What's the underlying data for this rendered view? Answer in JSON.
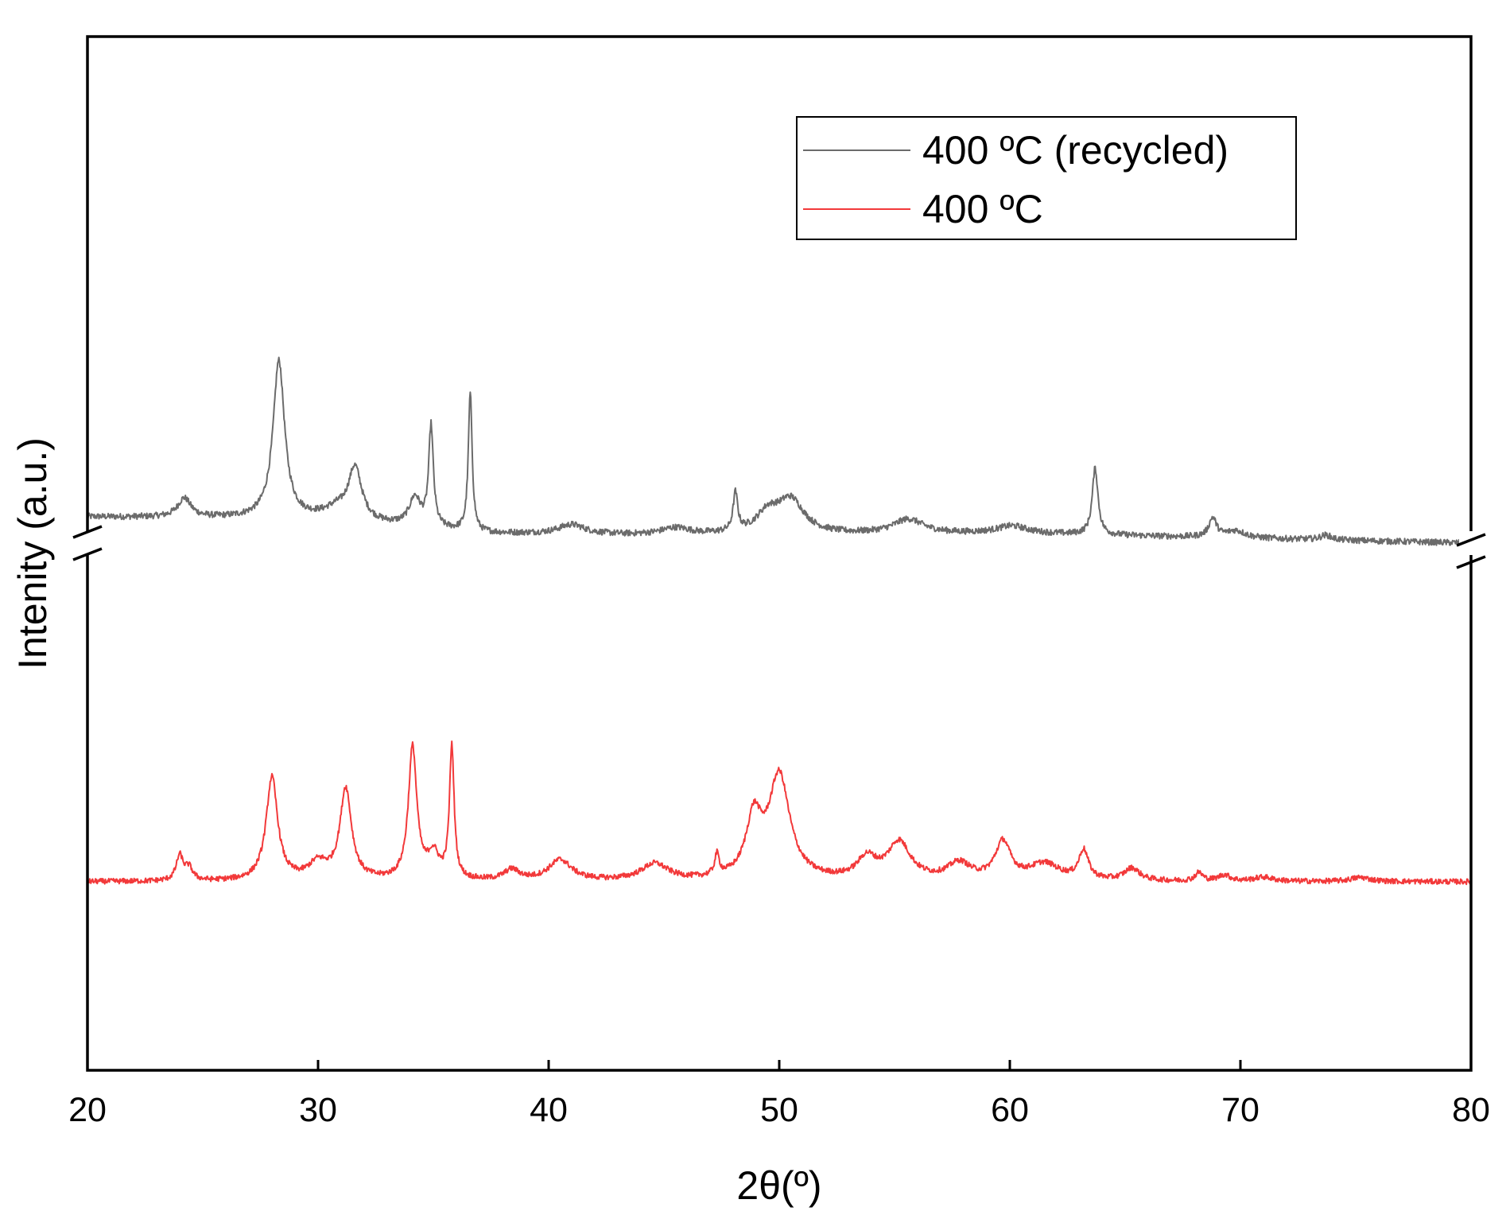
{
  "chart_data": {
    "type": "line",
    "xlabel": "2θ(º)",
    "ylabel": "Intenity (a.u.)",
    "xlim": [
      20,
      80
    ],
    "xticks": [
      "20",
      "30",
      "40",
      "50",
      "60",
      "70",
      "80"
    ],
    "axis_break": true,
    "legend_position": "top-right",
    "grid": false,
    "series": [
      {
        "name": "400 ºC (recycled)",
        "color": "#6b6b6b",
        "baseline": [
          [
            20,
            4
          ],
          [
            30,
            3.5
          ],
          [
            37,
            0.5
          ],
          [
            45,
            0
          ],
          [
            60,
            0.5
          ],
          [
            80,
            -1.5
          ]
        ],
        "peaks": [
          [
            24.2,
            4,
            0.35
          ],
          [
            28.3,
            33,
            0.3
          ],
          [
            30.8,
            2,
            0.6
          ],
          [
            31.6,
            11,
            0.35
          ],
          [
            34.2,
            6,
            0.3
          ],
          [
            34.9,
            21,
            0.12
          ],
          [
            36.6,
            29,
            0.1
          ],
          [
            41,
            2,
            0.7
          ],
          [
            45.5,
            1.5,
            0.8
          ],
          [
            48.1,
            8,
            0.12
          ],
          [
            49.5,
            4,
            0.6
          ],
          [
            50.5,
            7,
            0.7
          ],
          [
            55.6,
            3,
            0.8
          ],
          [
            60.1,
            1.5,
            0.8
          ],
          [
            63.7,
            14,
            0.15
          ],
          [
            68.8,
            4,
            0.2
          ],
          [
            69.8,
            1.5,
            0.5
          ],
          [
            73.7,
            1,
            0.3
          ]
        ]
      },
      {
        "name": "400 ºC",
        "color": "#f2393a",
        "baseline": [
          [
            20,
            0
          ],
          [
            80,
            0
          ]
        ],
        "peaks": [
          [
            24.0,
            6,
            0.18
          ],
          [
            24.4,
            3,
            0.2
          ],
          [
            28.0,
            25,
            0.3
          ],
          [
            30.0,
            4,
            0.5
          ],
          [
            31.2,
            22,
            0.3
          ],
          [
            34.1,
            32,
            0.22
          ],
          [
            35.0,
            6,
            0.3
          ],
          [
            35.8,
            32,
            0.12
          ],
          [
            38.4,
            2.5,
            0.4
          ],
          [
            40.5,
            5,
            0.6
          ],
          [
            44.6,
            4,
            0.7
          ],
          [
            47.3,
            5,
            0.12
          ],
          [
            48.9,
            14,
            0.4
          ],
          [
            50.0,
            25,
            0.55
          ],
          [
            53.8,
            5,
            0.5
          ],
          [
            55.2,
            9,
            0.6
          ],
          [
            57.8,
            4,
            0.6
          ],
          [
            59.7,
            9,
            0.4
          ],
          [
            61.5,
            4,
            0.8
          ],
          [
            63.2,
            7,
            0.25
          ],
          [
            65.3,
            3,
            0.4
          ],
          [
            68.2,
            2,
            0.2
          ],
          [
            69.3,
            1.5,
            0.3
          ],
          [
            71,
            1,
            0.5
          ],
          [
            75.2,
            1,
            0.5
          ]
        ]
      }
    ]
  }
}
